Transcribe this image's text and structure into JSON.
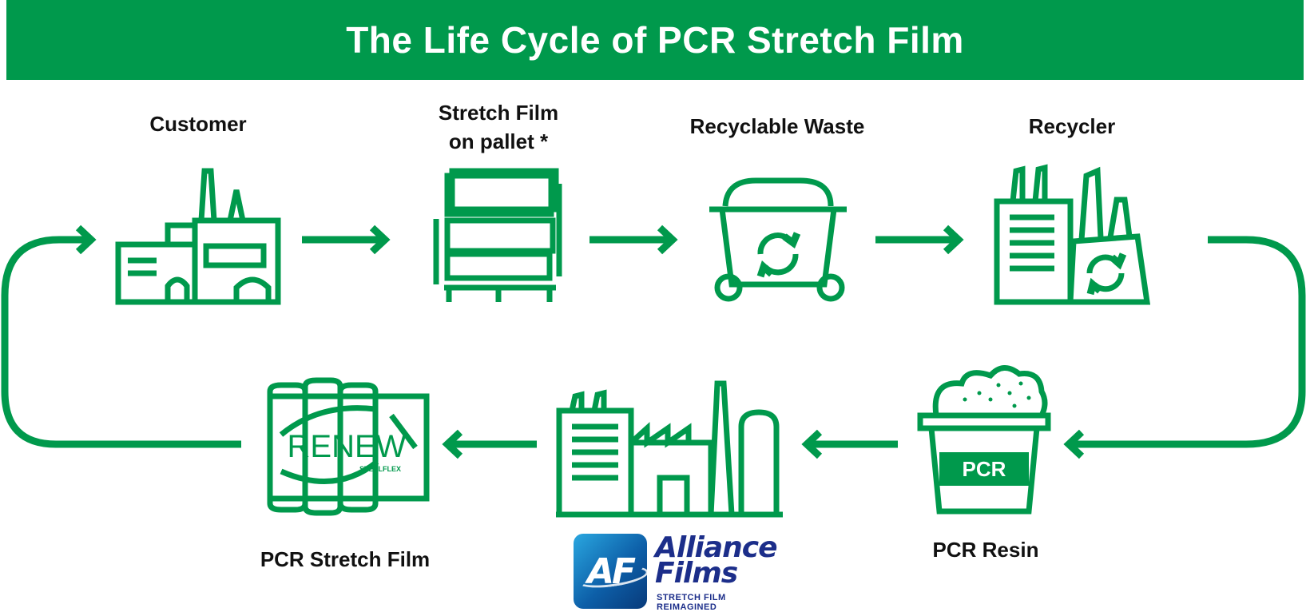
{
  "title": "The Life Cycle of PCR Stretch Film",
  "steps": {
    "customer": "Customer",
    "stretch_film_line1": "Stretch Film",
    "stretch_film_line2": "on pallet *",
    "recyclable_waste": "Recyclable Waste",
    "recycler": "Recycler",
    "pcr_resin": "PCR Resin",
    "pcr_stretch_film": "PCR Stretch Film"
  },
  "icons": {
    "bucket_badge": "PCR",
    "renew_text": "RENEW",
    "renew_sub": "STEELFLEX"
  },
  "logo": {
    "initials": "AF",
    "name_line1": "Alliance",
    "name_line2": "Films",
    "tagline": "STRETCH FILM REIMAGINED"
  },
  "colors": {
    "accent": "#00994c",
    "logo_navy": "#1c2e8a",
    "logo_blue": "#0d5fa8"
  }
}
